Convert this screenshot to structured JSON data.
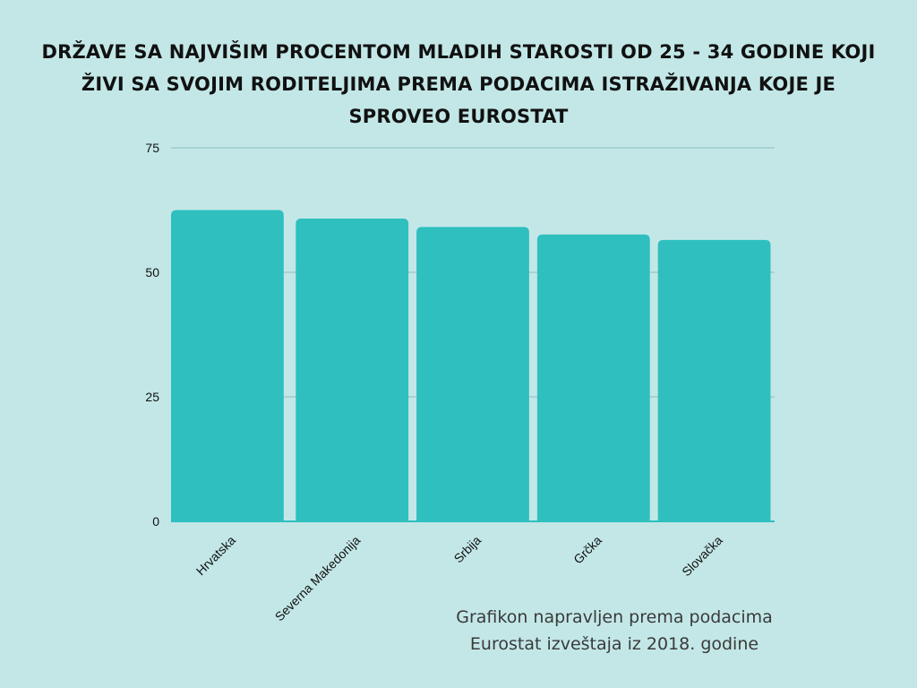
{
  "colors": {
    "background": "#c3e7e7",
    "bar": "#2fbfbf",
    "grid": "#8fbcbc",
    "baseline": "#2fbfbf",
    "text": "#111111"
  },
  "note": "Grafikon napravljen prema podacima Eurostat izveštaja iz 2018. godine",
  "chart_data": {
    "type": "bar",
    "title": "DRŽAVE SA NAJVIŠIM PROCENTOM MLADIH STAROSTI OD 25 - 34 GODINE KOJI ŽIVI SA SVOJIM RODITELJIMA PREMA PODACIMA ISTRAŽIVANJA KOJE JE SPROVEO EUROSTAT",
    "categories": [
      "Hrvatska",
      "Severna Makedonija",
      "Srbija",
      "Grčka",
      "Slovačka"
    ],
    "values": [
      62.5,
      60.8,
      59.1,
      57.6,
      56.5
    ],
    "yticks": [
      0,
      25,
      50,
      75
    ],
    "ylim": [
      0,
      75
    ],
    "xlabel": "",
    "ylabel": "",
    "grid": true,
    "legend": "none"
  }
}
